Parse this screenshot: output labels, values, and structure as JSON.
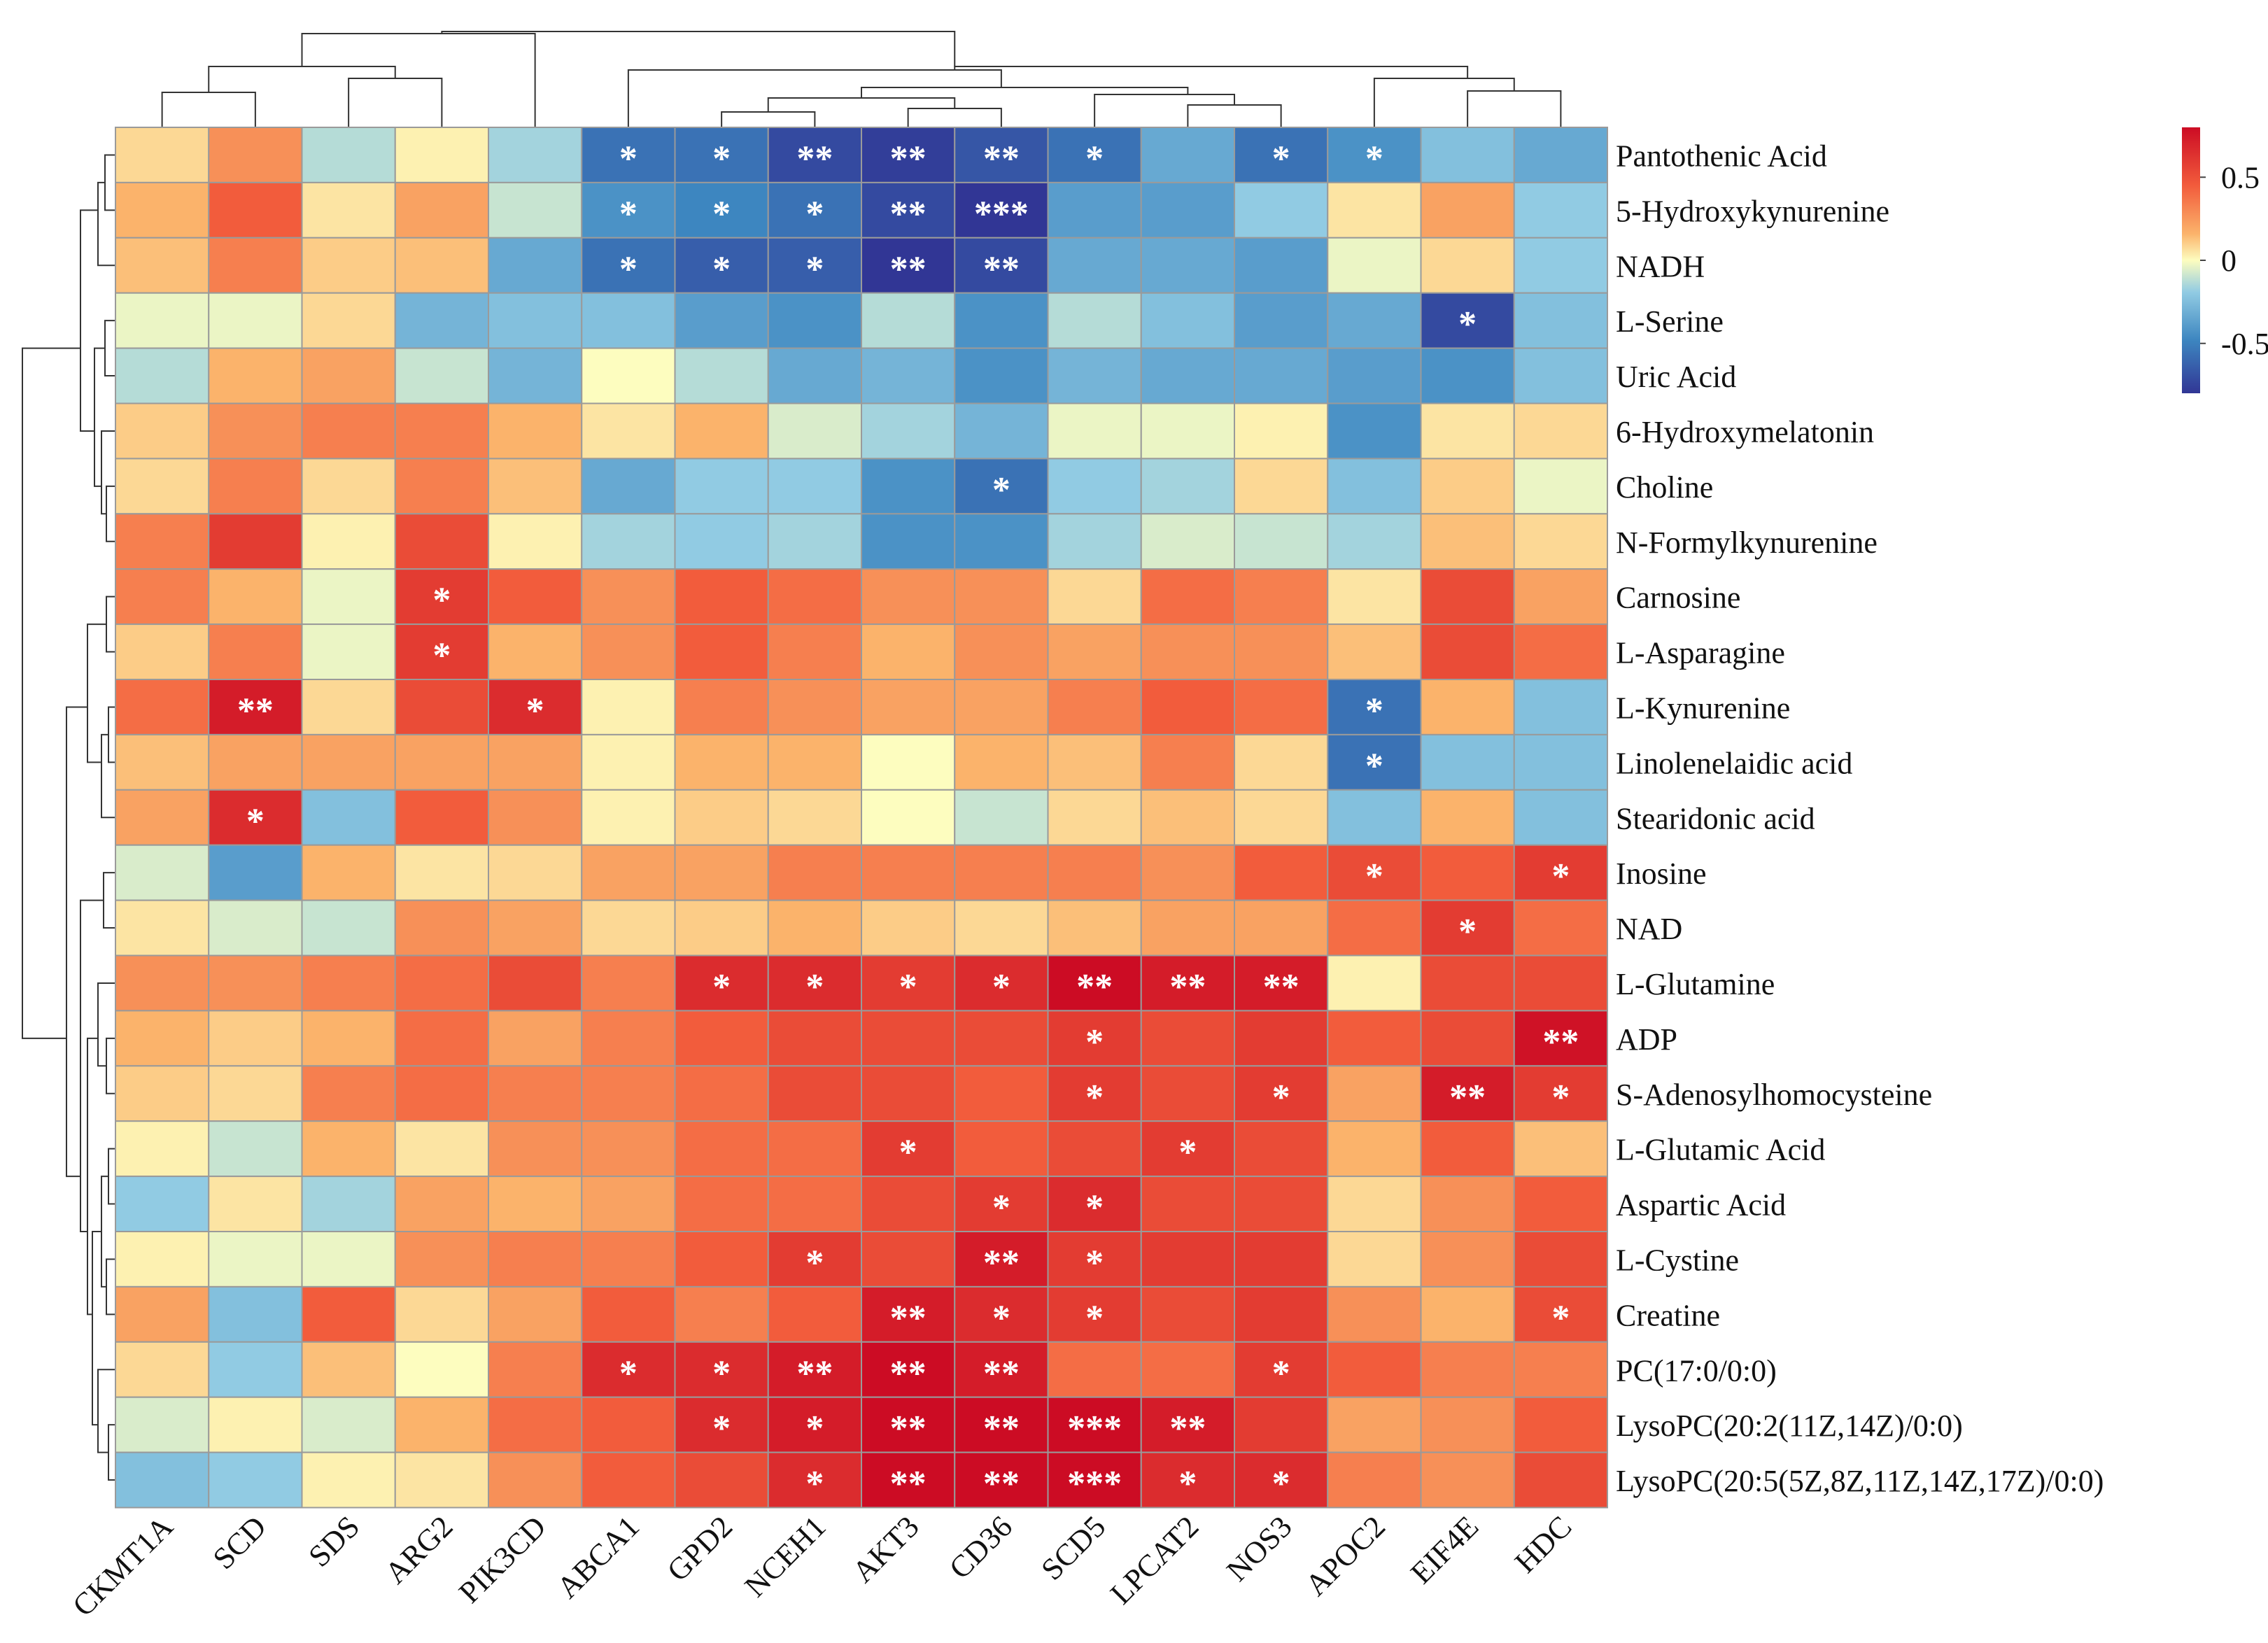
{
  "chart_data": {
    "type": "heatmap",
    "title": "",
    "columns": [
      "CKMT1A",
      "SCD",
      "SDS",
      "ARG2",
      "PIK3CD",
      "ABCA1",
      "GPD2",
      "NCEH1",
      "AKT3",
      "CD36",
      "SCD5",
      "LPCAT2",
      "NOS3",
      "APOC2",
      "EIF4E",
      "HDC"
    ],
    "rows": [
      "Pantothenic Acid",
      "5-Hydroxykynurenine",
      "NADH",
      "L-Serine",
      "Uric Acid",
      "6-Hydroxymelatonin",
      "Choline",
      "N-Formylkynurenine",
      "Carnosine",
      "L-Asparagine",
      "L-Kynurenine",
      "Linolenelaidic acid",
      "Stearidonic acid",
      "Inosine",
      "NAD",
      "L-Glutamine",
      "ADP",
      "S-Adenosylhomocysteine",
      "L-Glutamic Acid",
      "Aspartic Acid",
      "L-Cystine",
      "Creatine",
      "PC(17:0/0:0)",
      "LysoPC(20:2(11Z,14Z)/0:0)",
      "LysoPC(20:5(5Z,8Z,11Z,14Z,17Z)/0:0)"
    ],
    "values": [
      [
        0.15,
        0.4,
        -0.2,
        0.05,
        -0.25,
        -0.65,
        -0.65,
        -0.75,
        -0.78,
        -0.72,
        -0.65,
        -0.45,
        -0.65,
        -0.55,
        -0.35,
        -0.45
      ],
      [
        0.3,
        0.55,
        0.1,
        0.35,
        -0.15,
        -0.55,
        -0.6,
        -0.65,
        -0.75,
        -0.85,
        -0.5,
        -0.5,
        -0.3,
        0.1,
        0.35,
        -0.3
      ],
      [
        0.25,
        0.45,
        0.2,
        0.25,
        -0.45,
        -0.65,
        -0.7,
        -0.7,
        -0.8,
        -0.75,
        -0.45,
        -0.45,
        -0.5,
        -0.05,
        0.15,
        -0.3
      ],
      [
        -0.05,
        -0.05,
        0.15,
        -0.4,
        -0.35,
        -0.35,
        -0.5,
        -0.55,
        -0.2,
        -0.55,
        -0.2,
        -0.35,
        -0.5,
        -0.45,
        -0.75,
        -0.35
      ],
      [
        -0.2,
        0.3,
        0.35,
        -0.15,
        -0.4,
        0.0,
        -0.2,
        -0.45,
        -0.4,
        -0.55,
        -0.4,
        -0.45,
        -0.45,
        -0.5,
        -0.55,
        -0.35
      ],
      [
        0.2,
        0.4,
        0.45,
        0.45,
        0.3,
        0.1,
        0.3,
        -0.1,
        -0.25,
        -0.4,
        -0.05,
        -0.05,
        0.05,
        -0.55,
        0.1,
        0.15
      ],
      [
        0.15,
        0.45,
        0.15,
        0.45,
        0.25,
        -0.45,
        -0.3,
        -0.3,
        -0.55,
        -0.65,
        -0.3,
        -0.25,
        0.15,
        -0.35,
        0.2,
        -0.05
      ],
      [
        0.45,
        0.65,
        0.05,
        0.6,
        0.05,
        -0.25,
        -0.3,
        -0.25,
        -0.55,
        -0.55,
        -0.25,
        -0.1,
        -0.15,
        -0.25,
        0.25,
        0.15
      ],
      [
        0.45,
        0.3,
        -0.05,
        0.65,
        0.55,
        0.4,
        0.55,
        0.5,
        0.4,
        0.4,
        0.15,
        0.5,
        0.45,
        0.1,
        0.6,
        0.35
      ],
      [
        0.2,
        0.45,
        -0.05,
        0.65,
        0.3,
        0.4,
        0.55,
        0.45,
        0.3,
        0.4,
        0.35,
        0.4,
        0.4,
        0.25,
        0.6,
        0.5
      ],
      [
        0.5,
        0.75,
        0.15,
        0.6,
        0.7,
        0.05,
        0.45,
        0.4,
        0.35,
        0.35,
        0.45,
        0.55,
        0.5,
        -0.65,
        0.3,
        -0.35
      ],
      [
        0.25,
        0.35,
        0.35,
        0.35,
        0.35,
        0.05,
        0.3,
        0.3,
        0.0,
        0.3,
        0.25,
        0.45,
        0.15,
        -0.65,
        -0.35,
        -0.35
      ],
      [
        0.35,
        0.7,
        -0.35,
        0.55,
        0.4,
        0.05,
        0.2,
        0.15,
        0.0,
        -0.15,
        0.15,
        0.25,
        0.15,
        -0.35,
        0.3,
        -0.35
      ],
      [
        -0.1,
        -0.5,
        0.3,
        0.1,
        0.15,
        0.35,
        0.35,
        0.45,
        0.45,
        0.45,
        0.45,
        0.4,
        0.55,
        0.6,
        0.55,
        0.65
      ],
      [
        0.1,
        -0.1,
        -0.15,
        0.4,
        0.35,
        0.15,
        0.2,
        0.3,
        0.2,
        0.15,
        0.25,
        0.35,
        0.35,
        0.5,
        0.65,
        0.5
      ],
      [
        0.4,
        0.4,
        0.45,
        0.5,
        0.6,
        0.45,
        0.7,
        0.7,
        0.65,
        0.7,
        0.8,
        0.75,
        0.75,
        0.05,
        0.6,
        0.6
      ],
      [
        0.3,
        0.2,
        0.3,
        0.5,
        0.35,
        0.45,
        0.55,
        0.6,
        0.6,
        0.6,
        0.65,
        0.6,
        0.65,
        0.55,
        0.6,
        0.78
      ],
      [
        0.2,
        0.15,
        0.45,
        0.5,
        0.45,
        0.45,
        0.5,
        0.6,
        0.6,
        0.55,
        0.65,
        0.6,
        0.65,
        0.35,
        0.75,
        0.65
      ],
      [
        0.05,
        -0.15,
        0.3,
        0.1,
        0.4,
        0.4,
        0.5,
        0.5,
        0.65,
        0.55,
        0.6,
        0.65,
        0.6,
        0.3,
        0.55,
        0.25
      ],
      [
        -0.3,
        0.1,
        -0.25,
        0.35,
        0.3,
        0.35,
        0.5,
        0.5,
        0.6,
        0.65,
        0.7,
        0.6,
        0.6,
        0.15,
        0.4,
        0.55
      ],
      [
        0.05,
        -0.05,
        -0.05,
        0.4,
        0.45,
        0.45,
        0.55,
        0.65,
        0.6,
        0.75,
        0.65,
        0.65,
        0.65,
        0.15,
        0.4,
        0.6
      ],
      [
        0.35,
        -0.35,
        0.55,
        0.15,
        0.35,
        0.55,
        0.45,
        0.55,
        0.75,
        0.7,
        0.65,
        0.6,
        0.65,
        0.4,
        0.3,
        0.6
      ],
      [
        0.15,
        -0.3,
        0.25,
        0.0,
        0.45,
        0.7,
        0.7,
        0.75,
        0.8,
        0.75,
        0.5,
        0.5,
        0.65,
        0.55,
        0.45,
        0.45
      ],
      [
        -0.1,
        0.05,
        -0.1,
        0.3,
        0.5,
        0.55,
        0.7,
        0.75,
        0.8,
        0.8,
        0.85,
        0.75,
        0.65,
        0.35,
        0.4,
        0.55
      ],
      [
        -0.35,
        -0.3,
        0.05,
        0.1,
        0.4,
        0.55,
        0.6,
        0.7,
        0.8,
        0.8,
        0.9,
        0.7,
        0.7,
        0.45,
        0.4,
        0.6
      ]
    ],
    "significance": [
      [
        "",
        "",
        "",
        "",
        "",
        "*",
        "*",
        "**",
        "**",
        "**",
        "*",
        "",
        "*",
        "*",
        "",
        ""
      ],
      [
        "",
        "",
        "",
        "",
        "",
        "*",
        "*",
        "*",
        "**",
        "***",
        "",
        "",
        "",
        "",
        "",
        ""
      ],
      [
        "",
        "",
        "",
        "",
        "",
        "*",
        "*",
        "*",
        "**",
        "**",
        "",
        "",
        "",
        "",
        "",
        ""
      ],
      [
        "",
        "",
        "",
        "",
        "",
        "",
        "",
        "",
        "",
        "",
        "",
        "",
        "",
        "",
        "*",
        ""
      ],
      [
        "",
        "",
        "",
        "",
        "",
        "",
        "",
        "",
        "",
        "",
        "",
        "",
        "",
        "",
        "",
        ""
      ],
      [
        "",
        "",
        "",
        "",
        "",
        "",
        "",
        "",
        "",
        "",
        "",
        "",
        "",
        "",
        "",
        ""
      ],
      [
        "",
        "",
        "",
        "",
        "",
        "",
        "",
        "",
        "",
        "*",
        "",
        "",
        "",
        "",
        "",
        ""
      ],
      [
        "",
        "",
        "",
        "",
        "",
        "",
        "",
        "",
        "",
        "",
        "",
        "",
        "",
        "",
        "",
        ""
      ],
      [
        "",
        "",
        "",
        "*",
        "",
        "",
        "",
        "",
        "",
        "",
        "",
        "",
        "",
        "",
        "",
        ""
      ],
      [
        "",
        "",
        "",
        "*",
        "",
        "",
        "",
        "",
        "",
        "",
        "",
        "",
        "",
        "",
        "",
        ""
      ],
      [
        "",
        "**",
        "",
        "",
        "*",
        "",
        "",
        "",
        "",
        "",
        "",
        "",
        "",
        "*",
        "",
        ""
      ],
      [
        "",
        "",
        "",
        "",
        "",
        "",
        "",
        "",
        "",
        "",
        "",
        "",
        "",
        "*",
        "",
        ""
      ],
      [
        "",
        "*",
        "",
        "",
        "",
        "",
        "",
        "",
        "",
        "",
        "",
        "",
        "",
        "",
        "",
        ""
      ],
      [
        "",
        "",
        "",
        "",
        "",
        "",
        "",
        "",
        "",
        "",
        "",
        "",
        "",
        "*",
        "",
        "*"
      ],
      [
        "",
        "",
        "",
        "",
        "",
        "",
        "",
        "",
        "",
        "",
        "",
        "",
        "",
        "",
        "*",
        ""
      ],
      [
        "",
        "",
        "",
        "",
        "",
        "",
        "*",
        "*",
        "*",
        "*",
        "**",
        "**",
        "**",
        "",
        "",
        ""
      ],
      [
        "",
        "",
        "",
        "",
        "",
        "",
        "",
        "",
        "",
        "",
        "*",
        "",
        "",
        "",
        "",
        "**"
      ],
      [
        "",
        "",
        "",
        "",
        "",
        "",
        "",
        "",
        "",
        "",
        "*",
        "",
        "*",
        "",
        "**",
        "*"
      ],
      [
        "",
        "",
        "",
        "",
        "",
        "",
        "",
        "",
        "*",
        "",
        "",
        "*",
        "",
        "",
        "",
        ""
      ],
      [
        "",
        "",
        "",
        "",
        "",
        "",
        "",
        "",
        "",
        "*",
        "*",
        "",
        "",
        "",
        "",
        ""
      ],
      [
        "",
        "",
        "",
        "",
        "",
        "",
        "",
        "*",
        "",
        "**",
        "*",
        "",
        "",
        "",
        "",
        ""
      ],
      [
        "",
        "",
        "",
        "",
        "",
        "",
        "",
        "",
        "**",
        "*",
        "*",
        "",
        "",
        "",
        "",
        "*"
      ],
      [
        "",
        "",
        "",
        "",
        "",
        "*",
        "*",
        "**",
        "**",
        "**",
        "",
        "",
        "*",
        "",
        "",
        ""
      ],
      [
        "",
        "",
        "",
        "",
        "",
        "",
        "*",
        "*",
        "**",
        "**",
        "***",
        "**",
        "",
        "",
        "",
        ""
      ],
      [
        "",
        "",
        "",
        "",
        "",
        "",
        "",
        "*",
        "**",
        "**",
        "***",
        "*",
        "*",
        "",
        "",
        ""
      ]
    ],
    "legend": {
      "ticks": [
        {
          "value": 0.5,
          "label": "0.5"
        },
        {
          "value": 0,
          "label": "0"
        },
        {
          "value": -0.5,
          "label": "-0.5"
        }
      ],
      "range": [
        -0.8,
        0.8
      ],
      "position": "top-right"
    },
    "colors": {
      "low": "#313695",
      "mid_low": "#4a9fd0",
      "mid": "#fdfdbf",
      "mid_high": "#f89c59",
      "high": "#cc0c24",
      "grid": "#9a9a9a"
    }
  }
}
